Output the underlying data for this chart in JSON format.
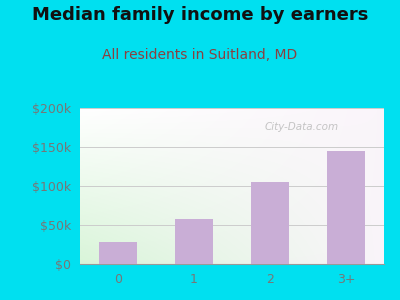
{
  "title": "Median family income by earners",
  "subtitle": "All residents in Suitland, MD",
  "categories": [
    "0",
    "1",
    "2",
    "3+"
  ],
  "values": [
    28000,
    58000,
    105000,
    145000
  ],
  "bar_color": "#c9aed6",
  "title_fontsize": 13,
  "title_fontweight": "bold",
  "subtitle_fontsize": 10,
  "subtitle_color": "#8b4040",
  "outer_bg_color": "#00e0f0",
  "plot_bg_top_color": "#e8f5e8",
  "plot_bg_bottom_color": "#f8f8f4",
  "plot_bg_right_color": "#f0f0ee",
  "ylim": [
    0,
    200000
  ],
  "yticks": [
    0,
    50000,
    100000,
    150000,
    200000
  ],
  "ytick_labels": [
    "$0",
    "$50k",
    "$100k",
    "$150k",
    "$200k"
  ],
  "tick_label_color": "#777777",
  "grid_color": "#cccccc",
  "watermark": "City-Data.com",
  "watermark_color": "#bbbbbb"
}
